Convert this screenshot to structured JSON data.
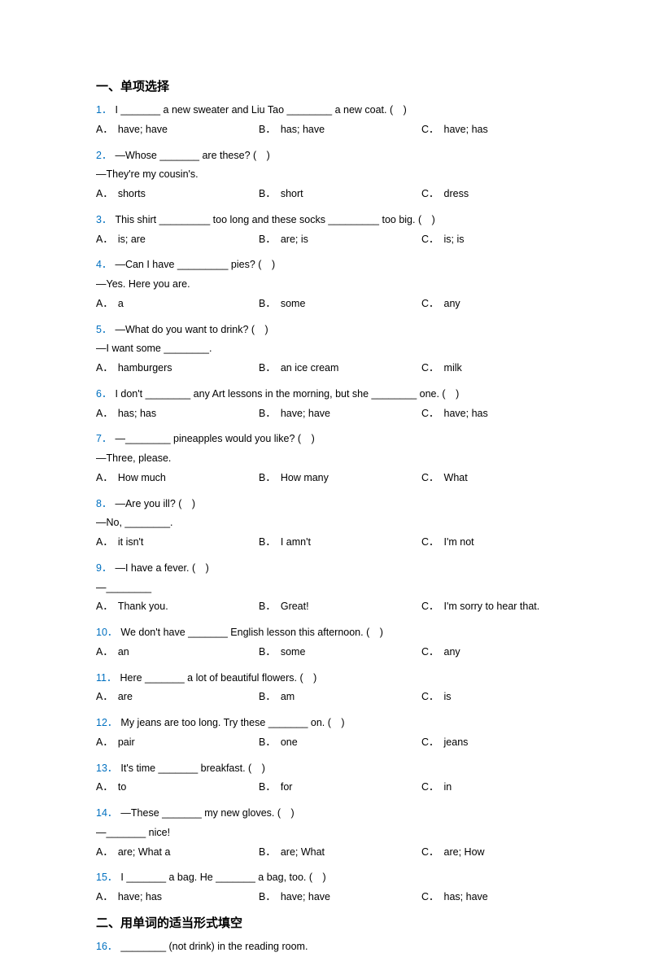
{
  "section1_title": "一、单项选择",
  "section2_title": "二、用单词的适当形式填空",
  "questions": [
    {
      "num": "1．",
      "text": "I _______ a new sweater and Liu Tao ________ a new coat. (　)",
      "opts": {
        "a": "have; have",
        "b": "has; have",
        "c": "have; has"
      }
    },
    {
      "num": "2．",
      "text": "—Whose _______ are these? (　)",
      "cont": "—They're my cousin's.",
      "opts": {
        "a": "shorts",
        "b": "short",
        "c": "dress"
      }
    },
    {
      "num": "3．",
      "text": "This shirt _________ too long and these socks _________ too big. (　)",
      "opts": {
        "a": "is; are",
        "b": "are; is",
        "c": "is; is"
      }
    },
    {
      "num": "4．",
      "text": "—Can I have _________ pies? (　)",
      "cont": "—Yes. Here you are.",
      "opts": {
        "a": "a",
        "b": "some",
        "c": "any"
      }
    },
    {
      "num": "5．",
      "text": "—What do you want to drink? (　)",
      "cont": "—I want some ________.",
      "opts": {
        "a": "hamburgers",
        "b": "an ice cream",
        "c": "milk"
      }
    },
    {
      "num": "6．",
      "text": "I don't ________ any Art lessons in the morning, but she ________ one. (　)",
      "opts": {
        "a": "has; has",
        "b": "have; have",
        "c": "have; has"
      }
    },
    {
      "num": "7．",
      "text": "—________ pineapples would you like? (　)",
      "cont": "—Three, please.",
      "opts": {
        "a": "How much",
        "b": "How many",
        "c": "What"
      }
    },
    {
      "num": "8．",
      "text": "—Are you ill? (　)",
      "cont": "—No, ________.",
      "opts": {
        "a": "it isn't",
        "b": "I amn't",
        "c": "I'm not"
      }
    },
    {
      "num": "9．",
      "text": "—I have a fever. (　)",
      "cont": "—________",
      "opts": {
        "a": "Thank you.",
        "b": "Great!",
        "c": "I'm sorry to hear that."
      }
    },
    {
      "num": "10．",
      "text": "We don't have _______ English lesson this afternoon. (　)",
      "opts": {
        "a": "an",
        "b": "some",
        "c": "any"
      }
    },
    {
      "num": "11．",
      "text": "Here _______ a lot of beautiful flowers. (　)",
      "opts": {
        "a": "are",
        "b": "am",
        "c": "is"
      }
    },
    {
      "num": "12．",
      "text": "My jeans are too long. Try these _______ on. (　)",
      "opts": {
        "a": "pair",
        "b": "one",
        "c": "jeans"
      }
    },
    {
      "num": "13．",
      "text": "It's time _______ breakfast. (　)",
      "opts": {
        "a": "to",
        "b": "for",
        "c": "in"
      }
    },
    {
      "num": "14．",
      "text": "—These _______ my new gloves. (　)",
      "cont": "—_______ nice!",
      "opts": {
        "a": "are; What a",
        "b": "are; What",
        "c": "are; How"
      }
    },
    {
      "num": "15．",
      "text": "I _______ a bag. He _______ a bag, too. (　)",
      "opts": {
        "a": "have; has",
        "b": "have; have",
        "c": "has; have"
      }
    }
  ],
  "q16": {
    "num": "16．",
    "text": "________ (not drink) in the reading room."
  },
  "labels": {
    "a": "A．",
    "b": "B．",
    "c": "C．"
  },
  "colors": {
    "num_color": "#0070c0",
    "text_color": "#000000",
    "bg_color": "#ffffff"
  }
}
